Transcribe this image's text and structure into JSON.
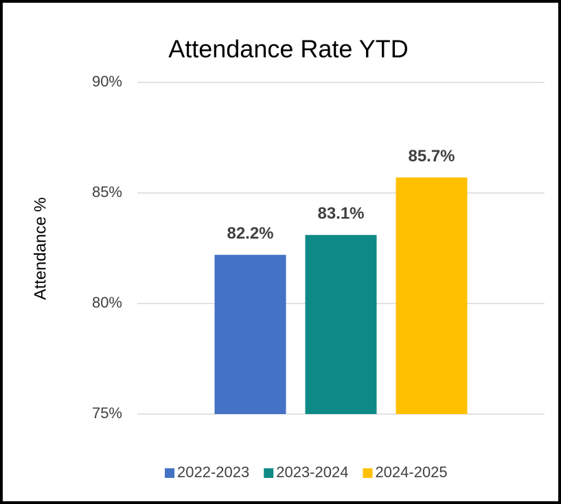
{
  "chart_data": {
    "type": "bar",
    "title": "Attendance Rate YTD",
    "y_label": "Attendance %",
    "categories": [
      null
    ],
    "series": [
      {
        "name": "2022-2023",
        "color": "#4472c4",
        "values": [
          82.2
        ],
        "value_labels": [
          "82.2%"
        ]
      },
      {
        "name": "2023-2024",
        "color": "#0e8a86",
        "values": [
          83.1
        ],
        "value_labels": [
          "83.1%"
        ]
      },
      {
        "name": "2024-2025",
        "color": "#ffc000",
        "values": [
          85.7
        ],
        "value_labels": [
          "85.7%"
        ]
      }
    ],
    "ylim": [
      75,
      90
    ],
    "yticks": [
      {
        "value": 75,
        "label": "75%"
      },
      {
        "value": 80,
        "label": "80%"
      },
      {
        "value": 85,
        "label": "85%"
      },
      {
        "value": 90,
        "label": "90%"
      }
    ],
    "grid": true,
    "legend": "bottom"
  }
}
